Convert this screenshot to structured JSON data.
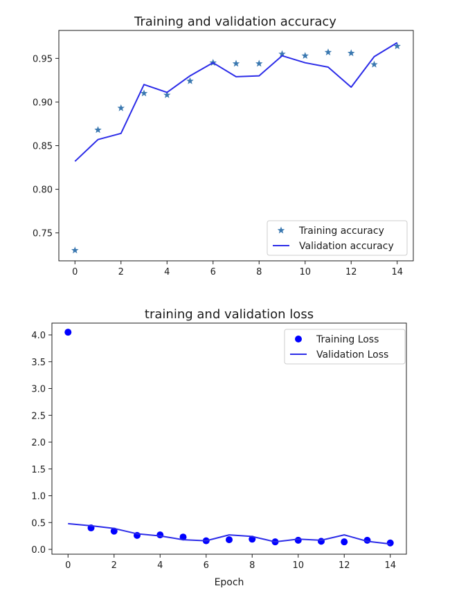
{
  "chart_data": [
    {
      "type": "line",
      "title": "Training and validation accuracy",
      "xlabel": "",
      "ylabel": "",
      "xlim": [
        -0.7,
        14.7
      ],
      "ylim": [
        0.718,
        0.982
      ],
      "xticks": [
        0,
        2,
        4,
        6,
        8,
        10,
        12,
        14
      ],
      "yticks": [
        0.75,
        0.8,
        0.85,
        0.9,
        0.95
      ],
      "ytick_labels": [
        "0.75",
        "0.80",
        "0.85",
        "0.90",
        "0.95"
      ],
      "legend_position": "lower-right",
      "grid": false,
      "series": [
        {
          "name": "Training accuracy",
          "style": "star-markers",
          "color": "#3a78b0",
          "x": [
            0,
            1,
            2,
            3,
            4,
            5,
            6,
            7,
            8,
            9,
            10,
            11,
            12,
            13,
            14
          ],
          "y": [
            0.73,
            0.868,
            0.893,
            0.91,
            0.908,
            0.924,
            0.945,
            0.944,
            0.944,
            0.955,
            0.953,
            0.957,
            0.956,
            0.943,
            0.964
          ]
        },
        {
          "name": "Validation accuracy",
          "style": "line",
          "color": "#2b2be8",
          "x": [
            0,
            1,
            2,
            3,
            4,
            5,
            6,
            7,
            8,
            9,
            10,
            11,
            12,
            13,
            14
          ],
          "y": [
            0.832,
            0.857,
            0.864,
            0.92,
            0.911,
            0.93,
            0.945,
            0.929,
            0.93,
            0.953,
            0.945,
            0.94,
            0.917,
            0.952,
            0.968
          ]
        }
      ]
    },
    {
      "type": "line",
      "title": "training and validation loss",
      "xlabel": "Epoch",
      "ylabel": "",
      "xlim": [
        -0.7,
        14.7
      ],
      "ylim": [
        -0.09,
        4.22
      ],
      "xticks": [
        0,
        2,
        4,
        6,
        8,
        10,
        12,
        14
      ],
      "yticks": [
        0.0,
        0.5,
        1.0,
        1.5,
        2.0,
        2.5,
        3.0,
        3.5,
        4.0
      ],
      "ytick_labels": [
        "0.0",
        "0.5",
        "1.0",
        "1.5",
        "2.0",
        "2.5",
        "3.0",
        "3.5",
        "4.0"
      ],
      "legend_position": "upper-right",
      "grid": false,
      "series": [
        {
          "name": "Training Loss",
          "style": "dot-markers",
          "color": "#0000ff",
          "x": [
            0,
            1,
            2,
            3,
            4,
            5,
            6,
            7,
            8,
            9,
            10,
            11,
            12,
            13,
            14
          ],
          "y": [
            4.05,
            0.4,
            0.34,
            0.26,
            0.27,
            0.23,
            0.16,
            0.18,
            0.19,
            0.14,
            0.17,
            0.15,
            0.14,
            0.17,
            0.12
          ]
        },
        {
          "name": "Validation Loss",
          "style": "line",
          "color": "#2b2be8",
          "x": [
            0,
            1,
            2,
            3,
            4,
            5,
            6,
            7,
            8,
            9,
            10,
            11,
            12,
            13,
            14
          ],
          "y": [
            0.48,
            0.44,
            0.39,
            0.29,
            0.25,
            0.18,
            0.16,
            0.27,
            0.24,
            0.14,
            0.19,
            0.17,
            0.27,
            0.15,
            0.1
          ]
        }
      ]
    }
  ]
}
